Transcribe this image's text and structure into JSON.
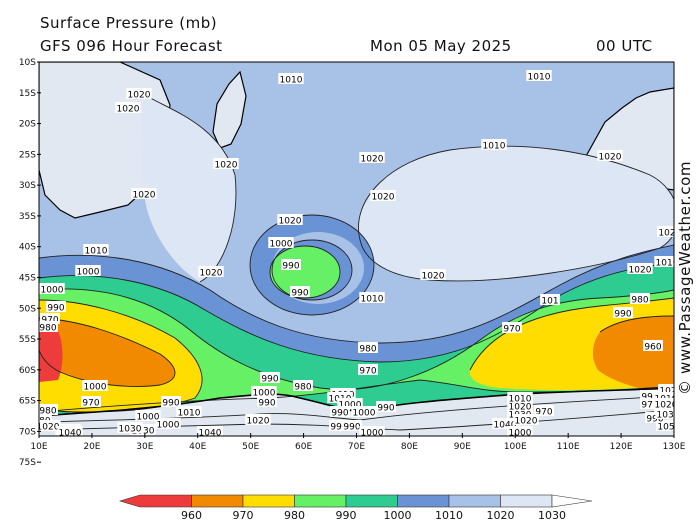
{
  "header": {
    "title": "Surface Pressure (mb)",
    "subtitle": "GFS 096 Hour Forecast",
    "date": "Mon 05 May 2025",
    "time": "00 UTC"
  },
  "credit": "© www.PassageWeather.com",
  "colors": {
    "p960": "#ee3b3b",
    "p970": "#f28a00",
    "p980": "#ffdd00",
    "p990": "#66f066",
    "p1000": "#2ecc91",
    "p1010": "#6a93d6",
    "p1020": "#a8c1e6",
    "p1030": "#dde6f5",
    "land": "#e2e8f2"
  },
  "map": {
    "lat_ticks": [
      "10S",
      "15S",
      "20S",
      "25S",
      "30S",
      "35S",
      "40S",
      "45S",
      "50S",
      "55S",
      "60S",
      "65S",
      "70S",
      "75S"
    ],
    "lon_ticks": [
      "10E",
      "20E",
      "30E",
      "40E",
      "50E",
      "60E",
      "70E",
      "80E",
      "90E",
      "100E",
      "110E",
      "120E",
      "130E"
    ],
    "isobar_labels": [
      "1010",
      "1010",
      "1020",
      "1020",
      "1020",
      "1020",
      "1010",
      "1020",
      "1020",
      "1020",
      "1020",
      "102",
      "1010",
      "1020",
      "1020",
      "1010",
      "1000",
      "1000",
      "990",
      "990",
      "1010",
      "1020",
      "1000",
      "101",
      "990",
      "980",
      "970",
      "990",
      "980",
      "970",
      "960",
      "980",
      "970",
      "1010",
      "1000",
      "990",
      "970",
      "990",
      "980",
      "970",
      "1000",
      "1010",
      "990",
      "990",
      "1000",
      "1020",
      "1030",
      "1040",
      "1030",
      "1000",
      "990",
      "990",
      "1000",
      "1040",
      "1030",
      "1020",
      "1010",
      "1020",
      "102",
      "105",
      "1040",
      "1010",
      "1000",
      "990",
      "980",
      "990",
      "980",
      "970",
      "960",
      "990",
      "1000",
      "1000",
      "1010",
      "1020",
      "1030",
      "1020",
      "1040"
    ]
  },
  "colorbar": {
    "labels": [
      "960",
      "970",
      "980",
      "990",
      "1000",
      "1010",
      "1020",
      "1030"
    ]
  }
}
